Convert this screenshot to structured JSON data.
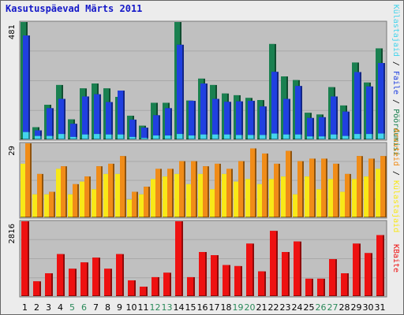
{
  "title": "Kasutuspäevad Märts 2011",
  "colors": {
    "background": "#ececec",
    "plot_background": "#c0c0c0",
    "title_color": "#1418c8",
    "weekend_day_label": "#2b8a5a",
    "weekday_label": "#000000"
  },
  "chart_data": [
    {
      "type": "bar",
      "categories": [
        "1",
        "2",
        "3",
        "4",
        "5",
        "6",
        "7",
        "8",
        "9",
        "10",
        "11",
        "12",
        "13",
        "14",
        "15",
        "16",
        "17",
        "18",
        "19",
        "20",
        "21",
        "22",
        "23",
        "24",
        "25",
        "26",
        "27",
        "28",
        "29",
        "30",
        "31"
      ],
      "weekend_days": [
        "5",
        "6",
        "12",
        "13",
        "19",
        "20",
        "26",
        "27"
      ],
      "ylabel_max": "481",
      "ylim": [
        0,
        481
      ],
      "series": [
        {
          "name": "Pöördumisi",
          "color": "#1a8050",
          "values": [
            481,
            50,
            142,
            223,
            82,
            209,
            229,
            209,
            174,
            97,
            56,
            150,
            150,
            481,
            159,
            249,
            223,
            188,
            181,
            170,
            161,
            391,
            258,
            243,
            109,
            102,
            214,
            139,
            315,
            233,
            373
          ]
        },
        {
          "name": "Faile",
          "color": "#2040e0",
          "values": [
            426,
            37,
            128,
            166,
            64,
            176,
            185,
            153,
            200,
            81,
            48,
            99,
            128,
            388,
            158,
            229,
            166,
            154,
            156,
            158,
            135,
            277,
            166,
            219,
            88,
            91,
            176,
            114,
            276,
            217,
            313
          ]
        },
        {
          "name": "Külastajaid",
          "color": "#44d4ec",
          "values": [
            30,
            14,
            14,
            22,
            10,
            20,
            22,
            20,
            20,
            10,
            6,
            16,
            16,
            22,
            16,
            20,
            20,
            20,
            18,
            18,
            18,
            24,
            20,
            20,
            12,
            12,
            20,
            14,
            22,
            22,
            24
          ]
        }
      ]
    },
    {
      "type": "bar",
      "categories": [
        "1",
        "2",
        "3",
        "4",
        "5",
        "6",
        "7",
        "8",
        "9",
        "10",
        "11",
        "12",
        "13",
        "14",
        "15",
        "16",
        "17",
        "18",
        "19",
        "20",
        "21",
        "22",
        "23",
        "24",
        "25",
        "26",
        "27",
        "28",
        "29",
        "30",
        "31"
      ],
      "ylabel_max": "29",
      "ylim": [
        0,
        29
      ],
      "series": [
        {
          "name": "Arvuteid",
          "color": "#f08c18",
          "values": [
            29,
            17,
            10,
            20,
            13,
            16,
            20,
            21,
            24,
            10,
            12,
            19,
            19,
            22,
            22,
            20,
            21,
            19,
            22,
            27,
            25,
            21,
            26,
            22,
            23,
            23,
            21,
            17,
            24,
            23,
            24
          ]
        },
        {
          "name": "Külastajaid",
          "color": "#f8e818",
          "values": [
            21,
            9,
            9,
            19,
            9,
            14,
            11,
            17,
            17,
            7,
            9,
            15,
            16,
            17,
            13,
            17,
            11,
            17,
            14,
            15,
            13,
            15,
            16,
            9,
            16,
            11,
            15,
            10,
            15,
            16,
            19
          ]
        }
      ]
    },
    {
      "type": "bar",
      "categories": [
        "1",
        "2",
        "3",
        "4",
        "5",
        "6",
        "7",
        "8",
        "9",
        "10",
        "11",
        "12",
        "13",
        "14",
        "15",
        "16",
        "17",
        "18",
        "19",
        "20",
        "21",
        "22",
        "23",
        "24",
        "25",
        "26",
        "27",
        "28",
        "29",
        "30",
        "31"
      ],
      "ylabel_max": "2816",
      "ylim": [
        0,
        2816
      ],
      "series": [
        {
          "name": "KBaite",
          "color": "#ee1111",
          "values": [
            2816,
            555,
            858,
            1580,
            1030,
            1268,
            1447,
            1030,
            1580,
            593,
            355,
            713,
            880,
            2816,
            713,
            1659,
            1540,
            1170,
            1130,
            1976,
            930,
            2454,
            1659,
            2055,
            655,
            655,
            1390,
            858,
            1976,
            1620,
            2297
          ]
        }
      ]
    }
  ]
}
